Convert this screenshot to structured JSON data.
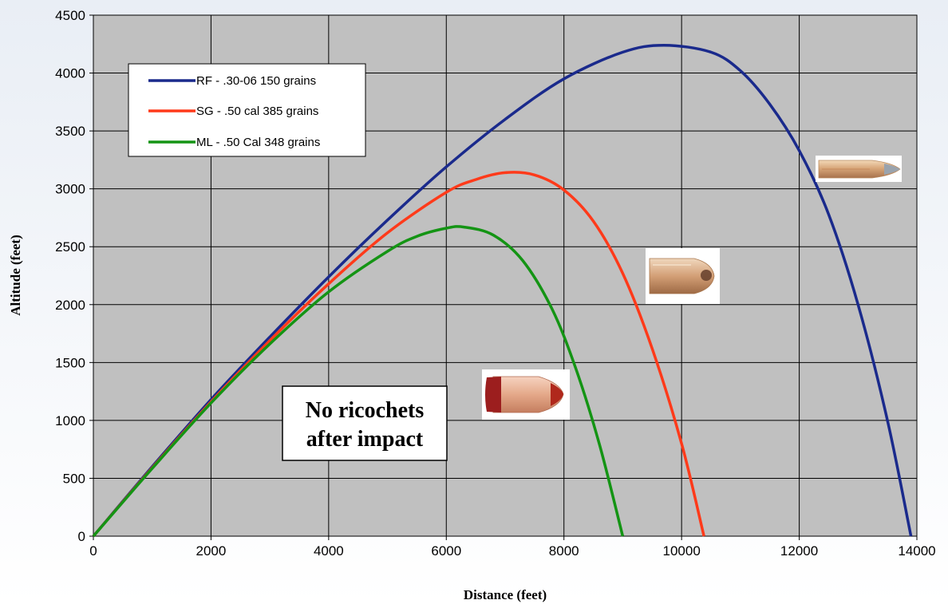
{
  "chart_data": {
    "type": "line",
    "xlabel": "Distance (feet)",
    "ylabel": "Altitude (feet)",
    "xlim": [
      0,
      14000
    ],
    "ylim": [
      0,
      4500
    ],
    "x_ticks": [
      "0",
      "2000",
      "4000",
      "6000",
      "8000",
      "10000",
      "12000",
      "14000"
    ],
    "y_ticks": [
      "0",
      "500",
      "1000",
      "1500",
      "2000",
      "2500",
      "3000",
      "3500",
      "4000",
      "4500"
    ],
    "grid": true,
    "legend_position": "top-left",
    "plot_background": "#c0c0c0",
    "series": [
      {
        "name": "RF - .30-06 150 grains",
        "color": "#1a2a8c",
        "points": [
          [
            0,
            0
          ],
          [
            1000,
            600
          ],
          [
            2000,
            1180
          ],
          [
            3000,
            1720
          ],
          [
            4000,
            2240
          ],
          [
            5000,
            2730
          ],
          [
            6000,
            3190
          ],
          [
            7000,
            3600
          ],
          [
            8000,
            3950
          ],
          [
            9000,
            4180
          ],
          [
            9700,
            4240
          ],
          [
            10500,
            4180
          ],
          [
            11000,
            4020
          ],
          [
            11500,
            3730
          ],
          [
            12000,
            3330
          ],
          [
            12500,
            2780
          ],
          [
            13000,
            2000
          ],
          [
            13500,
            1000
          ],
          [
            13900,
            0
          ]
        ]
      },
      {
        "name": "SG - .50 cal 385 grains",
        "color": "#ff3a1a",
        "points": [
          [
            0,
            0
          ],
          [
            1000,
            590
          ],
          [
            2000,
            1160
          ],
          [
            3000,
            1690
          ],
          [
            4000,
            2180
          ],
          [
            5000,
            2620
          ],
          [
            6000,
            2970
          ],
          [
            6500,
            3080
          ],
          [
            7000,
            3140
          ],
          [
            7500,
            3120
          ],
          [
            8000,
            2990
          ],
          [
            8500,
            2720
          ],
          [
            9000,
            2270
          ],
          [
            9500,
            1620
          ],
          [
            10000,
            800
          ],
          [
            10380,
            0
          ]
        ]
      },
      {
        "name": "ML - .50 Cal 348 grains",
        "color": "#149414",
        "points": [
          [
            0,
            0
          ],
          [
            1000,
            585
          ],
          [
            2000,
            1150
          ],
          [
            3000,
            1660
          ],
          [
            4000,
            2110
          ],
          [
            5000,
            2460
          ],
          [
            5500,
            2590
          ],
          [
            6000,
            2660
          ],
          [
            6300,
            2670
          ],
          [
            6800,
            2600
          ],
          [
            7300,
            2380
          ],
          [
            7800,
            1960
          ],
          [
            8200,
            1450
          ],
          [
            8600,
            800
          ],
          [
            9000,
            0
          ]
        ]
      }
    ],
    "annotation": "No ricochets after impact",
    "annotation_lines": [
      "No ricochets",
      "after impact"
    ],
    "bullet_icons": [
      "rifle-bullet-icon",
      "shotgun-slug-icon",
      "muzzleloader-bullet-icon"
    ]
  }
}
